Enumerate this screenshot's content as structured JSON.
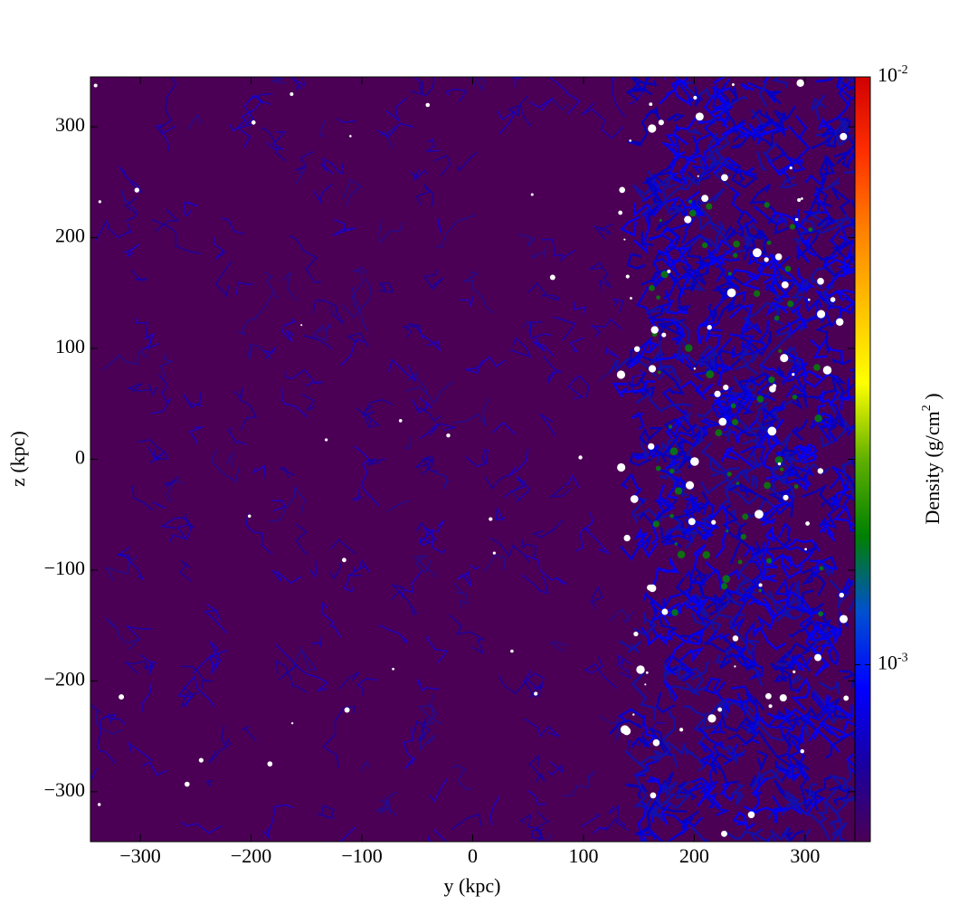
{
  "chart_data": {
    "type": "image",
    "background": "#4b0055",
    "x_label": "y  (kpc)",
    "y_label": "z  (kpc)",
    "xlim": [
      -345,
      345
    ],
    "ylim": [
      -345,
      345
    ],
    "xticks": [
      {
        "value": -300,
        "label": "−300"
      },
      {
        "value": -200,
        "label": "−200"
      },
      {
        "value": -100,
        "label": "−100"
      },
      0,
      100,
      200,
      300
    ],
    "yticks": [
      {
        "value": -300,
        "label": "−300"
      },
      {
        "value": -200,
        "label": "−200"
      },
      {
        "value": -100,
        "label": "−100"
      },
      0,
      100,
      200,
      300
    ],
    "colorbar": {
      "label": "Density  (g/cm",
      "label_sup": "2",
      "label_tail": " )",
      "log": true,
      "clim": [
        0.0005,
        0.01
      ],
      "ticks": [
        {
          "value": 0.001,
          "label": "10",
          "exponent": "-3"
        },
        {
          "value": 0.01,
          "label": "10",
          "exponent": "-2"
        }
      ],
      "colors": [
        "#4b0055",
        "#1a00a0",
        "#0000ff",
        "#0050d0",
        "#008000",
        "#60b000",
        "#ffff00",
        "#ffc000",
        "#ff8000",
        "#ff3000",
        "#d00000"
      ]
    }
  }
}
